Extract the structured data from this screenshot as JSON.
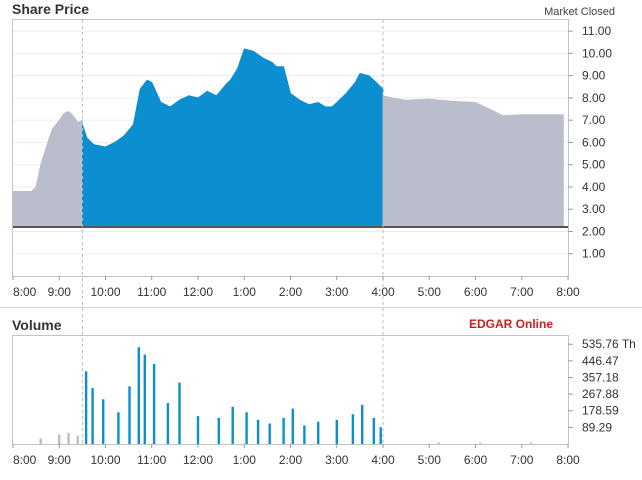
{
  "chart_data": [
    {
      "type": "area",
      "title": "Share Price",
      "status": "Market Closed",
      "xlabels": [
        "8:00",
        "9:00",
        "10:00",
        "11:00",
        "12:00",
        "1:00",
        "2:00",
        "3:00",
        "4:00",
        "5:00",
        "6:00",
        "7:00",
        "8:00"
      ],
      "yticks": [
        "11.00",
        "10.00",
        "9.00",
        "8.00",
        "7.00",
        "6.00",
        "5.00",
        "4.00",
        "3.00",
        "2.00",
        "1.00"
      ],
      "ylim": [
        0,
        11.5
      ],
      "baseline": 2.2,
      "grid": true,
      "session_hours": [
        9.5,
        16
      ],
      "colors": {
        "regular": "#0b8fd1",
        "extended": "#babdcb",
        "baseline": "#555555"
      },
      "series": [
        {
          "session": "pre",
          "x": [
            8.0,
            8.4,
            8.5,
            8.6,
            8.75,
            8.85,
            9.0,
            9.1,
            9.2,
            9.3,
            9.4,
            9.5
          ],
          "y": [
            3.8,
            3.8,
            4.0,
            5.0,
            6.0,
            6.6,
            7.0,
            7.3,
            7.4,
            7.2,
            6.9,
            7.0
          ]
        },
        {
          "session": "regular",
          "x": [
            9.5,
            9.6,
            9.75,
            10.0,
            10.2,
            10.4,
            10.6,
            10.75,
            10.9,
            11.0,
            11.2,
            11.4,
            11.6,
            11.8,
            12.0,
            12.2,
            12.4,
            12.6,
            12.7,
            12.85,
            13.0,
            13.2,
            13.4,
            13.6,
            13.7,
            13.85,
            14.0,
            14.2,
            14.4,
            14.6,
            14.75,
            14.9,
            15.0,
            15.2,
            15.4,
            15.5,
            15.7,
            15.85,
            16.0
          ],
          "y": [
            6.8,
            6.2,
            5.9,
            5.8,
            6.0,
            6.3,
            6.8,
            8.4,
            8.8,
            8.7,
            7.8,
            7.6,
            7.9,
            8.1,
            8.0,
            8.3,
            8.1,
            8.6,
            8.8,
            9.3,
            10.2,
            10.1,
            9.8,
            9.6,
            9.4,
            9.4,
            8.2,
            7.9,
            7.7,
            7.8,
            7.6,
            7.6,
            7.8,
            8.2,
            8.7,
            9.1,
            9.0,
            8.7,
            8.4
          ]
        },
        {
          "session": "after",
          "x": [
            16.0,
            16.2,
            16.5,
            17.0,
            17.5,
            18.0,
            18.3,
            18.6,
            19.0,
            19.5,
            19.9
          ],
          "y": [
            8.1,
            8.0,
            7.9,
            7.95,
            7.85,
            7.8,
            7.5,
            7.2,
            7.25,
            7.25,
            7.25
          ]
        }
      ]
    },
    {
      "type": "bar",
      "title": "Volume",
      "brand": "EDGAR Online",
      "xlabels": [
        "8:00",
        "9:00",
        "10:00",
        "11:00",
        "12:00",
        "1:00",
        "2:00",
        "3:00",
        "4:00",
        "5:00",
        "6:00",
        "7:00",
        "8:00"
      ],
      "yticks": [
        "535.76 Th",
        "446.47",
        "357.18",
        "267.88",
        "178.59",
        "89.29"
      ],
      "ylim": [
        0,
        580
      ],
      "colors": {
        "regular": "#0b8fd1",
        "extended": "#babdcb"
      },
      "series": [
        {
          "session": "regular",
          "x": [
            9.58,
            9.72,
            9.95,
            10.28,
            10.52,
            10.72,
            10.85,
            11.05,
            11.35,
            11.6,
            12.0,
            12.45,
            12.75,
            13.05,
            13.3,
            13.55,
            13.85,
            14.05,
            14.3,
            14.6,
            15.0,
            15.35,
            15.55,
            15.8,
            15.95
          ],
          "y": [
            390,
            300,
            240,
            170,
            310,
            520,
            480,
            430,
            220,
            330,
            150,
            140,
            200,
            170,
            130,
            110,
            140,
            190,
            100,
            120,
            130,
            160,
            210,
            140,
            90
          ]
        },
        {
          "session": "pre",
          "x": [
            8.6,
            9.0,
            9.2,
            9.4
          ],
          "y": [
            30,
            50,
            60,
            45
          ]
        },
        {
          "session": "after",
          "x": [
            17.2,
            18.1,
            19.2
          ],
          "y": [
            8,
            6,
            7
          ]
        }
      ]
    }
  ]
}
